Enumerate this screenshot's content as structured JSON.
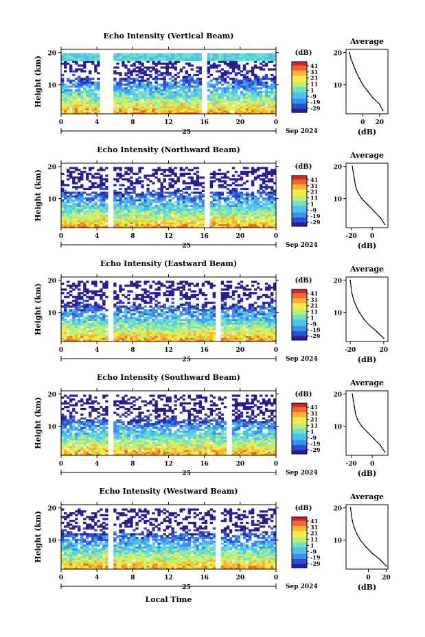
{
  "figure": {
    "height_label": "Height (km)",
    "date_label": "Sep 2024",
    "day_label": "25",
    "xlabel": "Local Time",
    "colorbar_label": "(dB)",
    "colorbar_ticks": [
      "41",
      "31",
      "21",
      "11",
      "1",
      "-9",
      "-19",
      "-29"
    ],
    "colormap": [
      "#2b1f8f",
      "#2c4fd6",
      "#3d8ef0",
      "#4cc3ee",
      "#6fe0c8",
      "#b8ef7a",
      "#f1ec4a",
      "#f7b431",
      "#ee6a2a",
      "#d42428"
    ],
    "x_ticks": [
      "0",
      "4",
      "8",
      "12",
      "16",
      "20",
      "0"
    ],
    "y_ticks": [
      "20",
      "10"
    ]
  },
  "chart_data": [
    {
      "type": "heatmap",
      "title": "Echo Intensity (Vertical Beam)",
      "xlabel": "",
      "ylabel": "Height (km)",
      "xlim": [
        0,
        24
      ],
      "ylim": [
        1,
        21
      ],
      "zlim": [
        -29,
        41
      ],
      "gaps_hours": [
        [
          4.4,
          5.6
        ],
        [
          15.7,
          16.1
        ]
      ],
      "profile": {
        "title": "Average",
        "xlabel": "(dB)",
        "xlim": [
          -20,
          30
        ],
        "xticks": [
          "0",
          "20"
        ],
        "yticks": [
          "20",
          "10"
        ],
        "heights": [
          2,
          4,
          6,
          8,
          10,
          12,
          14,
          16,
          18,
          20
        ],
        "values": [
          24,
          20,
          12,
          6,
          0,
          -4,
          -8,
          -11,
          -14,
          -16
        ]
      }
    },
    {
      "type": "heatmap",
      "title": "Echo Intensity (Northward Beam)",
      "xlabel": "",
      "ylabel": "Height (km)",
      "xlim": [
        0,
        24
      ],
      "ylim": [
        1,
        21
      ],
      "zlim": [
        -29,
        41
      ],
      "gaps_hours": [
        [
          5.4,
          5.8
        ],
        [
          16.1,
          16.5
        ]
      ],
      "profile": {
        "title": "Average",
        "xlabel": "(dB)",
        "xlim": [
          -25,
          15
        ],
        "xticks": [
          "-20",
          "0"
        ],
        "yticks": [
          "20",
          "10"
        ],
        "heights": [
          2,
          4,
          6,
          8,
          10,
          12,
          14,
          16,
          18,
          20
        ],
        "values": [
          12,
          8,
          2,
          -4,
          -10,
          -14,
          -16,
          -17,
          -18,
          -19
        ]
      }
    },
    {
      "type": "heatmap",
      "title": "Echo Intensity (Eastward Beam)",
      "xlabel": "",
      "ylabel": "Height (km)",
      "xlim": [
        0,
        24
      ],
      "ylim": [
        1,
        21
      ],
      "zlim": [
        -29,
        41
      ],
      "gaps_hours": [
        [
          5.4,
          5.8
        ],
        [
          17.5,
          17.8
        ]
      ],
      "profile": {
        "title": "Average",
        "xlabel": "(dB)",
        "xlim": [
          -25,
          25
        ],
        "xticks": [
          "-20",
          "20"
        ],
        "yticks": [
          "20",
          "10"
        ],
        "heights": [
          2,
          4,
          6,
          8,
          10,
          12,
          14,
          16,
          18,
          20
        ],
        "values": [
          20,
          12,
          3,
          -4,
          -9,
          -13,
          -16,
          -18,
          -19,
          -20
        ]
      }
    },
    {
      "type": "heatmap",
      "title": "Echo Intensity (Southward Beam)",
      "xlabel": "",
      "ylabel": "Height (km)",
      "xlim": [
        0,
        24
      ],
      "ylim": [
        1,
        21
      ],
      "zlim": [
        -29,
        41
      ],
      "gaps_hours": [
        [
          5.4,
          5.8
        ],
        [
          18.5,
          18.9
        ]
      ],
      "profile": {
        "title": "Average",
        "xlabel": "(dB)",
        "xlim": [
          -25,
          15
        ],
        "xticks": [
          "-20",
          "0"
        ],
        "yticks": [
          "20",
          "10"
        ],
        "heights": [
          2,
          4,
          6,
          8,
          10,
          12,
          14,
          16,
          18,
          20
        ],
        "values": [
          12,
          8,
          2,
          -4,
          -10,
          -14,
          -16,
          -17,
          -18,
          -19
        ]
      }
    },
    {
      "type": "heatmap",
      "title": "Echo Intensity (Westward Beam)",
      "xlabel": "Local Time",
      "ylabel": "Height (km)",
      "xlim": [
        0,
        24
      ],
      "ylim": [
        1,
        21
      ],
      "zlim": [
        -29,
        41
      ],
      "gaps_hours": [
        [
          5.4,
          5.8
        ],
        [
          17.5,
          17.8
        ]
      ],
      "profile": {
        "title": "Average",
        "xlabel": "(dB)",
        "xlim": [
          -25,
          22
        ],
        "xticks": [
          "0",
          "20"
        ],
        "yticks": [
          "20",
          "10"
        ],
        "heights": [
          2,
          4,
          6,
          8,
          10,
          12,
          14,
          16,
          18,
          20
        ],
        "values": [
          20,
          13,
          4,
          -3,
          -9,
          -13,
          -16,
          -18,
          -19,
          -20
        ]
      }
    }
  ]
}
